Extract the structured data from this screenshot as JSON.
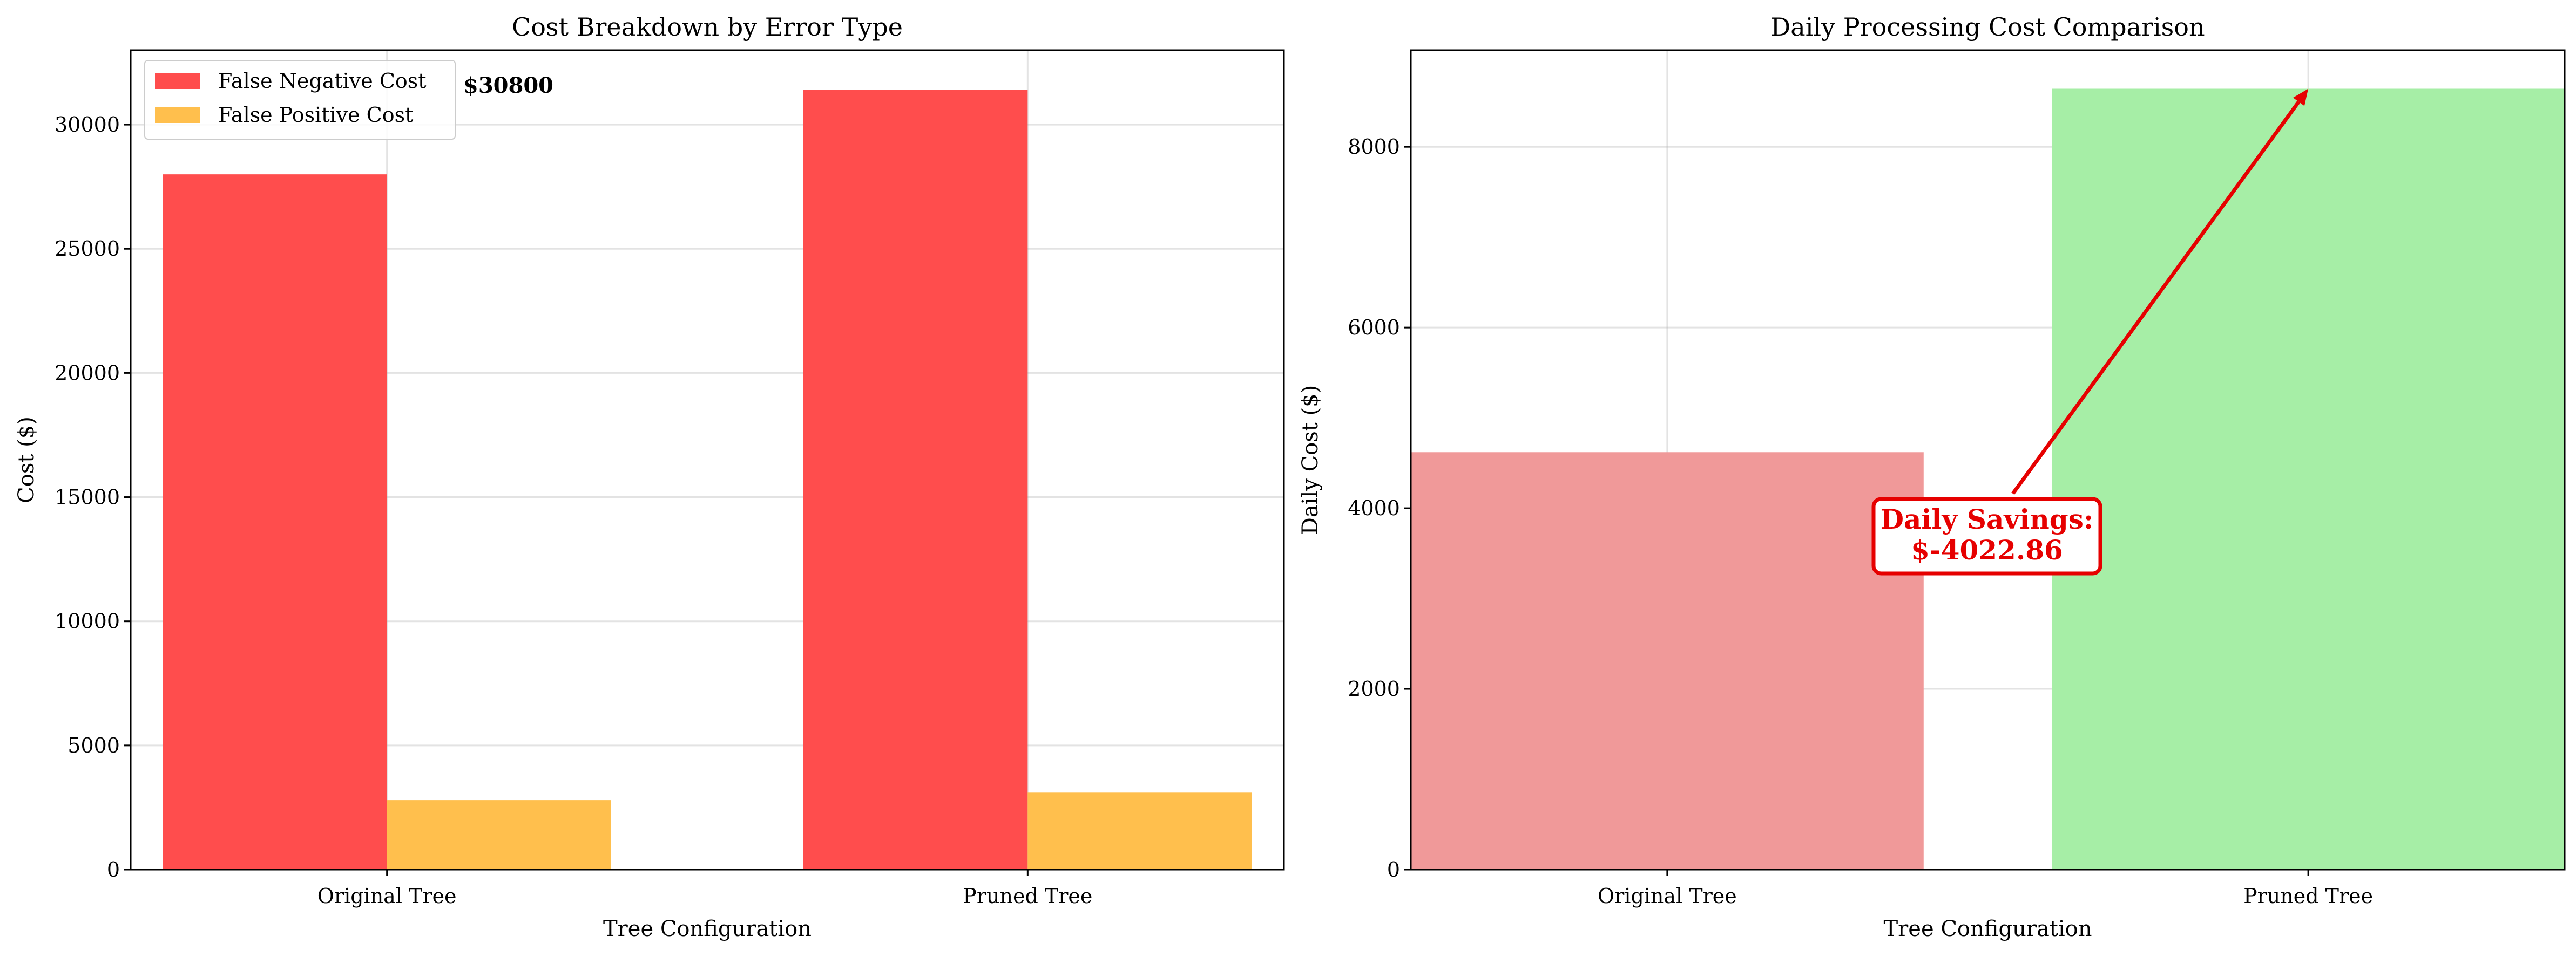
{
  "chart_data": [
    {
      "type": "bar",
      "title": "Cost Breakdown by Error Type",
      "xlabel": "Tree Configuration",
      "ylabel": "Cost ($)",
      "categories": [
        "Original Tree",
        "Pruned Tree"
      ],
      "series": [
        {
          "name": "False Negative Cost",
          "values": [
            28000,
            31400
          ],
          "color": "#ff4d4d"
        },
        {
          "name": "False Positive Cost",
          "values": [
            2800,
            3100
          ],
          "color": "#ffbf4d"
        }
      ],
      "ylim": [
        0,
        33000
      ],
      "yticks": [
        0,
        5000,
        10000,
        15000,
        20000,
        25000,
        30000
      ],
      "grid": true,
      "legend": "top-left",
      "annotation": "$30800"
    },
    {
      "type": "bar",
      "title": "Daily Processing Cost Comparison",
      "xlabel": "Tree Configuration",
      "ylabel": "Daily Cost ($)",
      "categories": [
        "Original Tree",
        "Pruned Tree"
      ],
      "values": [
        4620,
        8643
      ],
      "colors": [
        "#f09999",
        "#a6eea6"
      ],
      "ylim": [
        0,
        9070
      ],
      "yticks": [
        0,
        2000,
        4000,
        6000,
        8000
      ],
      "grid": true,
      "annotation": {
        "lines": [
          "Daily Savings:",
          "$-4022.86"
        ],
        "color": "#e60000"
      }
    }
  ]
}
